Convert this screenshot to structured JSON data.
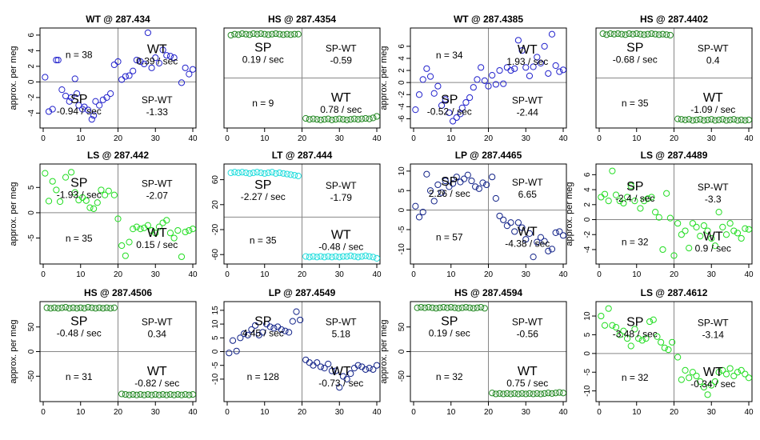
{
  "chart_data": [
    {
      "type": "scatter",
      "title": "WT @ 287.434",
      "ylabel": "approx. per meg",
      "color": "#2222cc",
      "xlim": [
        0,
        40
      ],
      "ylim": [
        -5.5,
        6.5
      ],
      "yticks": [
        -4,
        -2,
        0,
        2,
        4,
        6
      ],
      "xticks": [
        0,
        10,
        20,
        30,
        40
      ],
      "sp_label": "SP",
      "sp_rate": "-0.94 / sec",
      "wt_label": "WT",
      "wt_rate": "0.39 / sec",
      "spwt_label": "SP-WT",
      "spwt_value": "-1.33",
      "n_text": "n = 38",
      "x": [
        0.5,
        1.5,
        2.5,
        3.5,
        4,
        5,
        6,
        7,
        7.5,
        8.5,
        9,
        9.5,
        10.5,
        11,
        12,
        13,
        13.5,
        14,
        15,
        16,
        17,
        18,
        19,
        20,
        21,
        22,
        23,
        24,
        25,
        26,
        27,
        28,
        29,
        30,
        31,
        32,
        33,
        34,
        35,
        37,
        38,
        39,
        40
      ],
      "y": [
        0.6,
        -3.8,
        -3.5,
        2.8,
        2.8,
        -1.0,
        -1.8,
        -2.5,
        -2.0,
        0.4,
        -1.5,
        -3.0,
        -3.5,
        -3.2,
        -3.6,
        -4.8,
        -4.3,
        -2.5,
        -3.0,
        -2.3,
        -2.0,
        -1.5,
        2.2,
        2.6,
        0.3,
        0.7,
        0.8,
        1.4,
        2.8,
        2.6,
        2.3,
        6.3,
        1.8,
        3.1,
        2.4,
        4.1,
        3.4,
        3.3,
        3.1,
        -0.1,
        1.8,
        1.0,
        1.6
      ]
    },
    {
      "type": "scatter",
      "title": "HS @ 287.4354",
      "ylabel": "",
      "color": "#228822",
      "xlim": [
        0,
        40
      ],
      "ylim": [
        -95,
        95
      ],
      "yticks": [],
      "xticks": [
        0,
        10,
        20,
        30,
        40
      ],
      "sp_label": "SP",
      "sp_rate": "0.19 / sec",
      "wt_label": "WT",
      "wt_rate": "0.78 / sec",
      "spwt_label": "SP-WT",
      "spwt_value": "-0.59",
      "n_text": "n = 9",
      "x": [
        1,
        2,
        3,
        4,
        5,
        6,
        7,
        8,
        9,
        10,
        11,
        12,
        13,
        14,
        15,
        16,
        17,
        18,
        19,
        21,
        22,
        23,
        24,
        25,
        26,
        27,
        28,
        29,
        30,
        31,
        32,
        33,
        34,
        35,
        36,
        37,
        38,
        39,
        40
      ],
      "y": [
        87,
        89,
        88,
        90,
        89,
        88,
        90,
        89,
        90,
        89,
        88,
        89,
        90,
        89,
        88,
        89,
        88,
        89,
        89,
        -82,
        -84,
        -83,
        -84,
        -85,
        -84,
        -83,
        -85,
        -84,
        -83,
        -84,
        -85,
        -84,
        -83,
        -84,
        -83,
        -82,
        -83,
        -81,
        -78
      ]
    },
    {
      "type": "scatter",
      "title": "WT @ 287.4385",
      "ylabel": "approx. per meg",
      "color": "#2222cc",
      "xlim": [
        0,
        40
      ],
      "ylim": [
        -7,
        8.5
      ],
      "yticks": [
        -6,
        -4,
        -2,
        0,
        2,
        4,
        6
      ],
      "xticks": [
        0,
        10,
        20,
        30,
        40
      ],
      "sp_label": "SP",
      "sp_rate": "-0.52 / sec",
      "wt_label": "WT",
      "wt_rate": "1.93 / sec",
      "spwt_label": "SP-WT",
      "spwt_value": "-2.44",
      "n_text": "n = 34",
      "x": [
        0.5,
        1.5,
        2.5,
        3.5,
        4.5,
        5.5,
        6.5,
        7.5,
        8.5,
        9.5,
        10.5,
        11.5,
        12.5,
        13,
        14,
        15,
        16,
        17,
        18,
        19,
        20,
        21,
        22,
        23,
        24,
        25,
        26,
        27,
        28,
        29,
        30,
        31,
        32,
        33,
        34,
        35,
        36,
        37,
        38,
        39,
        40
      ],
      "y": [
        -4.5,
        -2.0,
        0.5,
        2.3,
        1.0,
        -1.8,
        -0.6,
        -3.8,
        -2.8,
        -5.0,
        -6.4,
        -5.8,
        -5.2,
        -4.2,
        -3.3,
        -2.5,
        -0.8,
        0.5,
        2.5,
        0.3,
        -0.6,
        1.2,
        -0.3,
        2.0,
        -0.2,
        2.5,
        2.0,
        2.3,
        7.0,
        5.3,
        2.5,
        1.1,
        2.6,
        4.2,
        3.2,
        6.0,
        1.5,
        8.0,
        2.8,
        1.8,
        2.1
      ]
    },
    {
      "type": "scatter",
      "title": "HS @ 287.4402",
      "ylabel": "",
      "color": "#228822",
      "xlim": [
        0,
        40
      ],
      "ylim": [
        -95,
        95
      ],
      "yticks": [],
      "xticks": [
        0,
        10,
        20,
        30,
        40
      ],
      "sp_label": "SP",
      "sp_rate": "-0.68 / sec",
      "wt_label": "WT",
      "wt_rate": "-1.09 / sec",
      "spwt_label": "SP-WT",
      "spwt_value": "0.4",
      "n_text": "n = 35",
      "x": [
        1,
        2,
        3,
        4,
        5,
        6,
        7,
        8,
        9,
        10,
        11,
        12,
        13,
        14,
        15,
        16,
        17,
        18,
        19,
        21,
        22,
        23,
        24,
        25,
        26,
        27,
        28,
        29,
        30,
        31,
        32,
        33,
        34,
        35,
        36,
        37,
        38,
        39,
        40
      ],
      "y": [
        90,
        88,
        90,
        89,
        90,
        89,
        88,
        90,
        89,
        90,
        89,
        88,
        89,
        90,
        89,
        88,
        89,
        88,
        87,
        -83,
        -84,
        -85,
        -84,
        -86,
        -85,
        -84,
        -86,
        -85,
        -84,
        -86,
        -85,
        -84,
        -86,
        -85,
        -84,
        -86,
        -85,
        -86,
        -85
      ]
    },
    {
      "type": "scatter",
      "title": "LS @ 287.442",
      "ylabel": "approx. per meg",
      "color": "#22dd22",
      "xlim": [
        0,
        40
      ],
      "ylim": [
        -9.5,
        9
      ],
      "yticks": [
        -5,
        0,
        5
      ],
      "xticks": [
        0,
        10,
        20,
        30,
        40
      ],
      "sp_label": "SP",
      "sp_rate": "-1.93 / sec",
      "wt_label": "WT",
      "wt_rate": "0.15 / sec",
      "spwt_label": "SP-WT",
      "spwt_value": "-2.07",
      "n_text": "n = 35",
      "x": [
        0.5,
        1.5,
        2.5,
        3.5,
        4.5,
        6,
        7.5,
        8.5,
        9.5,
        10.5,
        11.5,
        12.5,
        13.5,
        14.5,
        15.5,
        16.5,
        17.5,
        19,
        20,
        21,
        22,
        23,
        24,
        25,
        26,
        27,
        28,
        29,
        30,
        31,
        32,
        33,
        34,
        35,
        36,
        37,
        38,
        39,
        40
      ],
      "y": [
        7.8,
        2.3,
        6.2,
        4.5,
        2.2,
        7.0,
        8.0,
        4.0,
        2.5,
        3.0,
        2.4,
        1.0,
        0.8,
        2.0,
        4.5,
        3.5,
        4.3,
        3.5,
        -1.2,
        -6.5,
        -8.5,
        -5.8,
        -3.2,
        -2.8,
        -3.2,
        -3.0,
        -2.5,
        -3.5,
        -4.0,
        -2.8,
        -2.0,
        -1.5,
        -4.0,
        -5.0,
        -3.5,
        -8.7,
        -3.8,
        -3.5,
        -3.2
      ]
    },
    {
      "type": "scatter",
      "title": "LT @ 287.444",
      "ylabel": "",
      "color": "#22dddd",
      "xlim": [
        0,
        40
      ],
      "ylim": [
        -70,
        80
      ],
      "yticks": [
        -60,
        -20,
        20,
        60
      ],
      "xticks": [
        0,
        10,
        20,
        30,
        40
      ],
      "sp_label": "SP",
      "sp_rate": "-2.27 / sec",
      "wt_label": "WT",
      "wt_rate": "-0.48 / sec",
      "spwt_label": "SP-WT",
      "spwt_value": "-1.79",
      "n_text": "n = 35",
      "x": [
        1,
        2,
        3,
        4,
        5,
        6,
        7,
        8,
        9,
        10,
        11,
        12,
        13,
        14,
        15,
        16,
        17,
        18,
        19,
        21,
        22,
        23,
        24,
        25,
        26,
        27,
        28,
        29,
        30,
        31,
        32,
        33,
        34,
        35,
        36,
        37,
        38,
        39,
        40
      ],
      "y": [
        71,
        72,
        71,
        72,
        71,
        70,
        71,
        72,
        71,
        70,
        71,
        72,
        70,
        71,
        70,
        69,
        68,
        67,
        66,
        -63,
        -64,
        -63,
        -64,
        -63,
        -64,
        -63,
        -64,
        -63,
        -64,
        -63,
        -63,
        -62,
        -63,
        -64,
        -63,
        -62,
        -63,
        -64,
        -66
      ]
    },
    {
      "type": "scatter",
      "title": "LP @ 287.4465",
      "ylabel": "",
      "color": "#112288",
      "xlim": [
        0,
        40
      ],
      "ylim": [
        -13,
        11
      ],
      "yticks": [
        -10,
        -5,
        0,
        5,
        10
      ],
      "xticks": [
        0,
        10,
        20,
        30,
        40
      ],
      "sp_label": "SP",
      "sp_rate": "2.26 / sec",
      "wt_label": "WT",
      "wt_rate": "-4.38 / sec",
      "spwt_label": "SP-WT",
      "spwt_value": "6.65",
      "n_text": "n = 57",
      "x": [
        0.5,
        1.5,
        2.5,
        3.5,
        4.5,
        5.5,
        6.5,
        7.5,
        8.5,
        9.5,
        10.5,
        11.5,
        12.5,
        13.5,
        14.5,
        15.5,
        16.5,
        17.5,
        18.5,
        19.5,
        21,
        22,
        23,
        24,
        25,
        26,
        27,
        28,
        29,
        30,
        31,
        32,
        33,
        34,
        35,
        36,
        37,
        38,
        39,
        40
      ],
      "y": [
        1.0,
        -1.8,
        -0.5,
        9.2,
        5.0,
        2.3,
        6.5,
        4.5,
        7.5,
        6.0,
        6.8,
        8.5,
        7.2,
        8.0,
        9.0,
        7.5,
        6.0,
        5.5,
        7.0,
        6.5,
        8.5,
        3.0,
        -1.5,
        -2.5,
        -4.0,
        -3.2,
        -5.5,
        -3.2,
        -4.5,
        -7.5,
        -6.0,
        -12.0,
        -8.2,
        -7.0,
        -8.0,
        -10.5,
        -10.0,
        -5.8,
        -5.5,
        -6.5
      ]
    },
    {
      "type": "scatter",
      "title": "LS @ 287.4489",
      "ylabel": "approx. per meg",
      "color": "#22dd22",
      "xlim": [
        0,
        40
      ],
      "ylim": [
        -5.5,
        7
      ],
      "yticks": [
        -4,
        -2,
        0,
        2,
        4,
        6
      ],
      "xticks": [
        0,
        10,
        20,
        30,
        40
      ],
      "sp_label": "SP",
      "sp_rate": "-2.4 / sec",
      "wt_label": "WT",
      "wt_rate": "0.9 / sec",
      "spwt_label": "SP-WT",
      "spwt_value": "-3.3",
      "n_text": "n = 32",
      "x": [
        0.5,
        1.5,
        2.5,
        3.5,
        4.5,
        5.5,
        6.5,
        7.5,
        8.5,
        9.5,
        11,
        12,
        13,
        14,
        15,
        16,
        17,
        18,
        19,
        20,
        21,
        22,
        23,
        24,
        25,
        26,
        27,
        28,
        29,
        30,
        31,
        32,
        33,
        34,
        35,
        36,
        37,
        38,
        39,
        40
      ],
      "y": [
        3.0,
        3.4,
        2.5,
        6.5,
        3.3,
        2.5,
        2.2,
        3.0,
        4.5,
        2.5,
        1.5,
        2.5,
        2.8,
        3.0,
        1.0,
        0.3,
        -4.0,
        3.5,
        0.2,
        -4.8,
        -0.5,
        -2.0,
        -1.5,
        -3.8,
        -0.5,
        -1.0,
        -2.2,
        -0.8,
        -1.5,
        -2.5,
        -3.5,
        1.0,
        -1.0,
        -2.0,
        -0.5,
        -1.5,
        -1.8,
        -2.5,
        -1.2,
        -1.3
      ]
    },
    {
      "type": "scatter",
      "title": "HS @ 287.4506",
      "ylabel": "approx. per meg",
      "color": "#228822",
      "xlim": [
        0,
        40
      ],
      "ylim": [
        -95,
        95
      ],
      "yticks": [
        -50,
        0,
        50
      ],
      "xticks": [
        0,
        10,
        20,
        30,
        40
      ],
      "sp_label": "SP",
      "sp_rate": "-0.48 / sec",
      "wt_label": "WT",
      "wt_rate": "-0.82 / sec",
      "spwt_label": "SP-WT",
      "spwt_value": "0.34",
      "n_text": "n = 31",
      "x": [
        1,
        2,
        3,
        4,
        5,
        6,
        7,
        8,
        9,
        10,
        11,
        12,
        13,
        14,
        15,
        16,
        17,
        18,
        19,
        21,
        22,
        23,
        24,
        25,
        26,
        27,
        28,
        29,
        30,
        31,
        32,
        33,
        34,
        35,
        36,
        37,
        38,
        39,
        40
      ],
      "y": [
        89,
        88,
        89,
        88,
        89,
        90,
        88,
        89,
        88,
        89,
        88,
        90,
        89,
        88,
        89,
        88,
        89,
        88,
        89,
        -86,
        -87,
        -88,
        -87,
        -88,
        -87,
        -88,
        -87,
        -88,
        -87,
        -88,
        -87,
        -88,
        -87,
        -88,
        -87,
        -88,
        -87,
        -88,
        -87
      ]
    },
    {
      "type": "scatter",
      "title": "LP @ 287.4549",
      "ylabel": "",
      "color": "#112288",
      "xlim": [
        0,
        40
      ],
      "ylim": [
        -17,
        17
      ],
      "yticks": [
        -10,
        -5,
        0,
        5,
        10,
        15
      ],
      "xticks": [
        0,
        10,
        20,
        30,
        40
      ],
      "sp_label": "SP",
      "sp_rate": "4.45 / sec",
      "wt_label": "WT",
      "wt_rate": "-0.73 / sec",
      "spwt_label": "SP-WT",
      "spwt_value": "5.18",
      "n_text": "n = 128",
      "x": [
        0.5,
        1.5,
        2.5,
        3.5,
        4.5,
        5.5,
        6.5,
        7.5,
        8.5,
        9.5,
        10.5,
        11.5,
        12.5,
        13.5,
        14.5,
        15.5,
        16.5,
        17.5,
        18.5,
        19.5,
        21,
        22,
        23,
        24,
        25,
        26,
        27,
        28,
        29,
        30,
        31,
        32,
        33,
        34,
        35,
        36,
        37,
        38,
        39,
        40
      ],
      "y": [
        -0.5,
        4.0,
        0.2,
        5.0,
        6.5,
        6.0,
        8.0,
        9.5,
        6.0,
        7.0,
        10.0,
        9.0,
        8.5,
        9.0,
        8.0,
        7.5,
        7.0,
        11.0,
        14.5,
        11.5,
        -3.0,
        -4.0,
        -5.0,
        -4.0,
        -5.5,
        -6.0,
        -4.5,
        -7.0,
        -7.0,
        -13.0,
        -9.0,
        -10.0,
        -8.0,
        -6.0,
        -5.0,
        -5.5,
        -6.5,
        -6.0,
        -6.5,
        -5.0
      ]
    },
    {
      "type": "scatter",
      "title": "HS @ 287.4594",
      "ylabel": "approx. per meg",
      "color": "#228822",
      "xlim": [
        0,
        40
      ],
      "ylim": [
        -95,
        95
      ],
      "yticks": [
        -50,
        0,
        50
      ],
      "xticks": [
        0,
        10,
        20,
        30,
        40
      ],
      "sp_label": "SP",
      "sp_rate": "0.19 / sec",
      "wt_label": "WT",
      "wt_rate": "0.75 / sec",
      "spwt_label": "SP-WT",
      "spwt_value": "-0.56",
      "n_text": "n = 32",
      "x": [
        1,
        2,
        3,
        4,
        5,
        6,
        7,
        8,
        9,
        10,
        11,
        12,
        13,
        14,
        15,
        16,
        17,
        18,
        19,
        21,
        22,
        23,
        24,
        25,
        26,
        27,
        28,
        29,
        30,
        31,
        32,
        33,
        34,
        35,
        36,
        37,
        38,
        39,
        40
      ],
      "y": [
        89,
        90,
        89,
        90,
        89,
        88,
        89,
        90,
        89,
        90,
        89,
        88,
        89,
        90,
        89,
        88,
        89,
        90,
        88,
        -84,
        -86,
        -85,
        -86,
        -85,
        -86,
        -85,
        -86,
        -85,
        -86,
        -85,
        -86,
        -85,
        -86,
        -85,
        -84,
        -85,
        -84,
        -83,
        -84
      ]
    },
    {
      "type": "scatter",
      "title": "LS @ 287.4612",
      "ylabel": "",
      "color": "#22dd22",
      "xlim": [
        0,
        40
      ],
      "ylim": [
        -12,
        13
      ],
      "yticks": [
        -10,
        -5,
        0,
        5,
        10
      ],
      "xticks": [
        0,
        10,
        20,
        30,
        40
      ],
      "sp_label": "SP",
      "sp_rate": "-3.48 / sec",
      "wt_label": "WT",
      "wt_rate": "-0.34 / sec",
      "spwt_label": "SP-WT",
      "spwt_value": "-3.14",
      "n_text": "n = 32",
      "x": [
        0.5,
        1.5,
        2.5,
        3.5,
        4.5,
        5.5,
        6.5,
        7.5,
        8.5,
        9.5,
        10.5,
        11.5,
        12.5,
        13.5,
        14.5,
        15.5,
        16.5,
        17.5,
        18.5,
        19.5,
        21,
        22,
        23,
        24,
        25,
        26,
        27,
        28,
        29,
        30,
        31,
        32,
        33,
        34,
        35,
        36,
        37,
        38,
        39,
        40
      ],
      "y": [
        10.0,
        7.5,
        12.0,
        7.5,
        7.0,
        5.0,
        6.0,
        4.0,
        2.0,
        6.5,
        4.0,
        3.5,
        4.0,
        8.5,
        9.0,
        4.5,
        3.0,
        1.5,
        1.0,
        3.0,
        -1.0,
        -7.0,
        -4.5,
        -6.5,
        -5.0,
        -6.0,
        -7.5,
        -9.0,
        -11.0,
        -8.5,
        -7.5,
        -5.0,
        -4.5,
        -5.5,
        -4.0,
        -6.0,
        -5.0,
        -4.5,
        -5.5,
        -6.5
      ]
    }
  ]
}
